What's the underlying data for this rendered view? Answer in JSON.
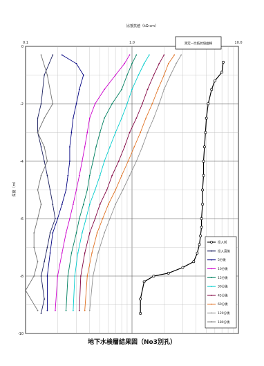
{
  "chart_data": {
    "type": "line",
    "title": "",
    "xlabel": "比抵抗値（kΩ·cm）",
    "ylabel": "深度（m）",
    "x_scale": "log",
    "xlim": [
      0.1,
      10
    ],
    "ylim": [
      0,
      -10
    ],
    "x_ticks": [
      "0.1",
      "1.0",
      "10.0"
    ],
    "y_ticks": [
      "0",
      "-2",
      "-4",
      "-6",
      "-8",
      "-10"
    ],
    "grid": true,
    "legend_position": "bottom-right",
    "annotation_box": "測定一比抵抗値曲線",
    "caption": "地下水検層結果図（No3別孔）",
    "series": [
      {
        "name": "投入前",
        "color": "#000000",
        "marker": "circle-open",
        "x": [
          7.2,
          7.0,
          6.0,
          5.6,
          5.2,
          5.0,
          4.9,
          4.8,
          4.7,
          4.7,
          4.6,
          4.6,
          4.5,
          4.5,
          4.4,
          4.3,
          4.1,
          3.8,
          3.0,
          2.2,
          1.6,
          1.3,
          1.2,
          1.2
        ],
        "y": [
          -0.55,
          -0.9,
          -1.2,
          -1.5,
          -2.0,
          -2.5,
          -3.0,
          -3.5,
          -4.0,
          -4.5,
          -5.0,
          -5.5,
          -6.0,
          -6.3,
          -6.6,
          -6.9,
          -7.2,
          -7.5,
          -7.7,
          -7.9,
          -8.0,
          -8.2,
          -8.8,
          -9.3
        ]
      },
      {
        "name": "投入直後",
        "color": "#1a1f5e",
        "marker": "dot",
        "x": [
          0.18,
          0.15,
          0.14,
          0.13,
          0.13,
          0.14,
          0.15,
          0.16,
          0.17,
          0.18,
          0.19,
          0.17,
          0.16,
          0.15,
          0.14,
          0.15,
          0.14
        ],
        "y": [
          -0.3,
          -1.0,
          -2.0,
          -2.5,
          -3.0,
          -3.5,
          -4.0,
          -4.5,
          -5.0,
          -5.5,
          -6.0,
          -6.5,
          -7.0,
          -7.5,
          -8.0,
          -8.8,
          -9.3
        ]
      },
      {
        "name": "5分後",
        "color": "#000080",
        "marker": "dot",
        "x": [
          0.22,
          0.3,
          0.35,
          0.32,
          0.3,
          0.28,
          0.27,
          0.26,
          0.26,
          0.25,
          0.24,
          0.22,
          0.2,
          0.18,
          0.17,
          0.16,
          0.16
        ],
        "y": [
          -0.3,
          -0.6,
          -1.0,
          -1.5,
          -2.0,
          -2.5,
          -3.0,
          -3.5,
          -4.0,
          -4.5,
          -5.0,
          -5.5,
          -6.0,
          -6.5,
          -7.2,
          -8.0,
          -9.2
        ]
      },
      {
        "name": "10分後",
        "color": "#cc00cc",
        "marker": "dot",
        "x": [
          0.95,
          0.85,
          0.7,
          0.55,
          0.45,
          0.4,
          0.38,
          0.36,
          0.34,
          0.32,
          0.3,
          0.28,
          0.26,
          0.24,
          0.22,
          0.2,
          0.19
        ],
        "y": [
          -0.3,
          -0.6,
          -1.0,
          -1.5,
          -2.0,
          -2.5,
          -3.0,
          -3.5,
          -4.0,
          -4.5,
          -5.0,
          -5.5,
          -6.0,
          -6.5,
          -7.2,
          -8.0,
          -9.2
        ]
      },
      {
        "name": "15分後",
        "color": "#008060",
        "marker": "dot",
        "x": [
          1.1,
          1.0,
          0.9,
          0.8,
          0.65,
          0.55,
          0.5,
          0.46,
          0.43,
          0.4,
          0.38,
          0.35,
          0.32,
          0.3,
          0.27,
          0.25,
          0.24
        ],
        "y": [
          -0.3,
          -0.6,
          -1.0,
          -1.5,
          -2.0,
          -2.5,
          -3.0,
          -3.5,
          -4.0,
          -4.5,
          -5.0,
          -5.5,
          -6.0,
          -6.5,
          -7.2,
          -8.0,
          -9.2
        ]
      },
      {
        "name": "30分後",
        "color": "#00cccc",
        "marker": "dot",
        "x": [
          1.45,
          1.3,
          1.15,
          1.0,
          0.9,
          0.8,
          0.7,
          0.62,
          0.55,
          0.5,
          0.45,
          0.4,
          0.37,
          0.34,
          0.31,
          0.29,
          0.28
        ],
        "y": [
          -0.3,
          -0.6,
          -1.0,
          -1.5,
          -2.0,
          -2.5,
          -3.0,
          -3.5,
          -4.0,
          -4.5,
          -5.0,
          -5.5,
          -6.0,
          -6.5,
          -7.2,
          -8.0,
          -9.2
        ]
      },
      {
        "name": "45分後",
        "color": "#800040",
        "marker": "dot",
        "x": [
          2.0,
          1.8,
          1.6,
          1.4,
          1.25,
          1.1,
          0.95,
          0.85,
          0.75,
          0.65,
          0.58,
          0.5,
          0.45,
          0.4,
          0.36,
          0.33,
          0.32
        ],
        "y": [
          -0.3,
          -0.6,
          -1.0,
          -1.5,
          -2.0,
          -2.5,
          -3.0,
          -3.5,
          -4.0,
          -4.5,
          -5.0,
          -5.5,
          -6.0,
          -6.5,
          -7.2,
          -8.0,
          -9.2
        ]
      },
      {
        "name": "60分後",
        "color": "#e07020",
        "marker": "dot",
        "x": [
          2.5,
          2.2,
          2.0,
          1.75,
          1.55,
          1.35,
          1.2,
          1.05,
          0.92,
          0.8,
          0.7,
          0.6,
          0.53,
          0.47,
          0.42,
          0.38,
          0.36
        ],
        "y": [
          -0.3,
          -0.6,
          -1.0,
          -1.5,
          -2.0,
          -2.5,
          -3.0,
          -3.5,
          -4.0,
          -4.5,
          -5.0,
          -5.5,
          -6.0,
          -6.5,
          -7.2,
          -8.0,
          -9.2
        ]
      },
      {
        "name": "120分後",
        "color": "#909090",
        "marker": "dot",
        "x": [
          2.9,
          2.6,
          2.3,
          2.0,
          1.8,
          1.6,
          1.4,
          1.25,
          1.1,
          0.95,
          0.82,
          0.7,
          0.62,
          0.55,
          0.48,
          0.43,
          0.4
        ],
        "y": [
          -0.3,
          -0.6,
          -1.0,
          -1.5,
          -2.0,
          -2.5,
          -3.0,
          -3.5,
          -4.0,
          -4.5,
          -5.0,
          -5.5,
          -6.0,
          -6.5,
          -7.2,
          -8.0,
          -9.2
        ]
      },
      {
        "name": "180分後",
        "color": "#707070",
        "marker": "dot",
        "x": [
          0.14,
          0.16,
          0.18,
          0.15,
          0.13,
          0.15,
          0.16,
          0.14,
          0.13,
          0.14,
          0.13,
          0.12,
          0.12,
          0.13,
          0.12,
          0.1,
          0.13
        ],
        "y": [
          -0.3,
          -1.0,
          -2.0,
          -2.5,
          -3.0,
          -3.5,
          -4.0,
          -4.5,
          -5.0,
          -5.5,
          -6.0,
          -6.5,
          -7.0,
          -7.5,
          -8.0,
          -8.5,
          -9.2
        ]
      }
    ]
  }
}
